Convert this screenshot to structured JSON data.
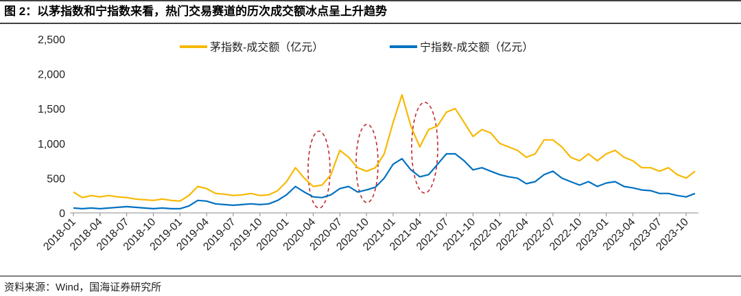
{
  "chart_data": {
    "type": "line",
    "title": "图 2：以茅指数和宁指数来看，热门交易赛道的历次成交额冰点呈上升趋势",
    "source": "资料来源：Wind，国海证券研究所",
    "x": [
      "2018-01",
      "2018-02",
      "2018-03",
      "2018-04",
      "2018-05",
      "2018-06",
      "2018-07",
      "2018-08",
      "2018-09",
      "2018-10",
      "2018-11",
      "2018-12",
      "2019-01",
      "2019-02",
      "2019-03",
      "2019-04",
      "2019-05",
      "2019-06",
      "2019-07",
      "2019-08",
      "2019-09",
      "2019-10",
      "2019-11",
      "2019-12",
      "2020-01",
      "2020-02",
      "2020-03",
      "2020-04",
      "2020-05",
      "2020-06",
      "2020-07",
      "2020-08",
      "2020-09",
      "2020-10",
      "2020-11",
      "2020-12",
      "2021-01",
      "2021-02",
      "2021-03",
      "2021-04",
      "2021-05",
      "2021-06",
      "2021-07",
      "2021-08",
      "2021-09",
      "2021-10",
      "2021-11",
      "2021-12",
      "2022-01",
      "2022-02",
      "2022-03",
      "2022-04",
      "2022-05",
      "2022-06",
      "2022-07",
      "2022-08",
      "2022-09",
      "2022-10",
      "2022-11",
      "2022-12",
      "2023-01",
      "2023-02",
      "2023-03",
      "2023-04",
      "2023-05",
      "2023-06",
      "2023-07",
      "2023-08",
      "2023-09",
      "2023-10",
      "2023-11"
    ],
    "series": [
      {
        "name": "茅指数-成交额（亿元）",
        "color": "#f7b800",
        "values": [
          300,
          220,
          250,
          230,
          250,
          230,
          220,
          200,
          190,
          180,
          200,
          180,
          170,
          250,
          380,
          350,
          280,
          270,
          250,
          260,
          280,
          250,
          260,
          320,
          450,
          650,
          500,
          380,
          400,
          550,
          900,
          800,
          650,
          600,
          650,
          850,
          1300,
          1700,
          1250,
          950,
          1200,
          1250,
          1450,
          1500,
          1300,
          1100,
          1200,
          1150,
          1000,
          950,
          900,
          800,
          850,
          1050,
          1050,
          950,
          800,
          750,
          850,
          750,
          850,
          900,
          800,
          750,
          650,
          650,
          600,
          650,
          550,
          500,
          600
        ]
      },
      {
        "name": "宁指数-成交额（亿元）",
        "color": "#0070c0",
        "values": [
          70,
          60,
          70,
          60,
          70,
          80,
          90,
          80,
          70,
          60,
          70,
          60,
          60,
          100,
          180,
          170,
          130,
          120,
          110,
          120,
          130,
          120,
          130,
          180,
          260,
          380,
          300,
          230,
          220,
          260,
          350,
          380,
          300,
          330,
          370,
          500,
          700,
          780,
          620,
          520,
          550,
          700,
          850,
          850,
          750,
          620,
          650,
          600,
          550,
          520,
          500,
          420,
          450,
          550,
          600,
          500,
          450,
          400,
          450,
          380,
          430,
          450,
          380,
          360,
          330,
          320,
          280,
          280,
          250,
          230,
          280
        ]
      }
    ],
    "xlim": [
      "2018-01",
      "2023-11"
    ],
    "xticks": [
      "2018-01",
      "2018-04",
      "2018-07",
      "2018-10",
      "2019-01",
      "2019-04",
      "2019-07",
      "2019-10",
      "2020-01",
      "2020-04",
      "2020-07",
      "2020-10",
      "2021-01",
      "2021-04",
      "2021-07",
      "2021-10",
      "2022-01",
      "2022-04",
      "2022-07",
      "2022-10",
      "2023-01",
      "2023-04",
      "2023-07",
      "2023-10"
    ],
    "ylim": [
      0,
      2500
    ],
    "yticks": [
      0,
      {
        "value": 500,
        "label": "500"
      },
      {
        "value": 1000,
        "label": "1,000"
      },
      {
        "value": 1500,
        "label": "1,500"
      },
      {
        "value": 2000,
        "label": "2,000"
      },
      {
        "value": 2500,
        "label": "2,500"
      }
    ],
    "legend": "top"
  }
}
